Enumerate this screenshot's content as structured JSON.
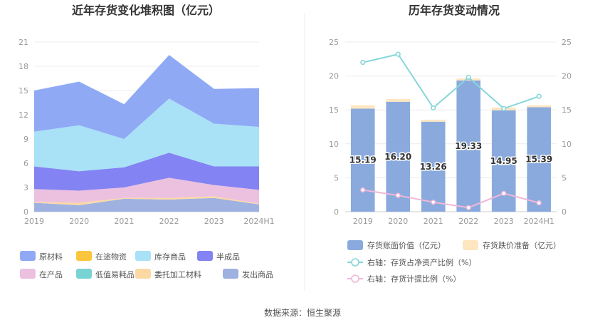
{
  "source": "数据来源：恒生聚源",
  "chart_data": [
    {
      "type": "area",
      "stacked": true,
      "title": "近年存货变化堆积图（亿元）",
      "categories": [
        "2019",
        "2020",
        "2021",
        "2022",
        "2023",
        "2024H1"
      ],
      "yticks": [
        "0",
        "3",
        "6",
        "9",
        "12",
        "15",
        "18",
        "21"
      ],
      "ylim": [
        0,
        21
      ],
      "grid": true,
      "legend_position": "bottom",
      "series": [
        {
          "name": "原材料",
          "color": "#8fa9f5",
          "values": [
            5.1,
            5.4,
            4.3,
            5.4,
            4.3,
            4.8
          ]
        },
        {
          "name": "在途物资",
          "color": "#fbc53c",
          "values": [
            0,
            0,
            0,
            0,
            0,
            0
          ]
        },
        {
          "name": "库存商品",
          "color": "#a9e1f7",
          "values": [
            4.3,
            5.7,
            3.5,
            6.7,
            5.3,
            4.9
          ]
        },
        {
          "name": "半成品",
          "color": "#8383f3",
          "values": [
            2.8,
            2.4,
            2.5,
            3.1,
            2.3,
            2.9
          ]
        },
        {
          "name": "在产品",
          "color": "#ecc0df",
          "values": [
            1.6,
            1.5,
            1.3,
            2.5,
            1.4,
            1.7
          ]
        },
        {
          "name": "低值易耗品",
          "color": "#79d3d3",
          "values": [
            0,
            0,
            0,
            0,
            0,
            0
          ]
        },
        {
          "name": "委托加工材料",
          "color": "#fcd9a3",
          "values": [
            0.1,
            0.3,
            0.1,
            0.2,
            0.2,
            0.1
          ]
        },
        {
          "name": "发出商品",
          "color": "#9fb1e1",
          "values": [
            1.1,
            0.8,
            1.6,
            1.5,
            1.7,
            0.9
          ]
        }
      ]
    },
    {
      "type": "bar",
      "title": "历年存货变动情况",
      "categories": [
        "2019",
        "2020",
        "2021",
        "2022",
        "2023",
        "2024H1"
      ],
      "yticks_left": [
        "0",
        "5",
        "10",
        "15",
        "20",
        "25"
      ],
      "yticks_right": [
        "0",
        "5",
        "10",
        "15",
        "20",
        "25"
      ],
      "ylim": [
        0,
        25
      ],
      "grid": true,
      "legend_position": "bottom",
      "series": [
        {
          "name": "存货账面价值（亿元）",
          "kind": "bar",
          "color": "#8aaade",
          "values": [
            15.19,
            16.2,
            13.26,
            19.33,
            14.95,
            15.39
          ],
          "labels": [
            "15.19",
            "16.20",
            "13.26",
            "19.33",
            "14.95",
            "15.39"
          ]
        },
        {
          "name": "存货跌价准备（亿元）",
          "kind": "bar",
          "color": "#fde6c0",
          "values": [
            0.5,
            0.4,
            0.3,
            0.3,
            0.4,
            0.3
          ]
        },
        {
          "name": "右轴：存货占净资产比例（%）",
          "kind": "line",
          "axis": "right",
          "color": "#86d6da",
          "values": [
            22.0,
            23.2,
            15.3,
            19.8,
            15.2,
            17.0
          ]
        },
        {
          "name": "右轴：存货计提比例（%）",
          "kind": "line",
          "axis": "right",
          "color": "#f0b7d7",
          "values": [
            3.2,
            2.4,
            1.4,
            0.6,
            2.7,
            1.3
          ]
        }
      ]
    }
  ]
}
